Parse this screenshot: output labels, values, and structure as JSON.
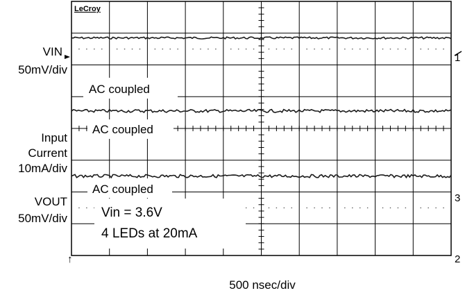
{
  "chart_data": {
    "type": "line",
    "brand": "LeCroy",
    "xlabel": "500 nsec/div",
    "grid": true,
    "divisions": {
      "horizontal": 10,
      "vertical": 8
    },
    "series": [
      {
        "name": "VIN",
        "channel_marker": "1",
        "scale": "50mV/div",
        "coupling": "AC coupled",
        "level_div": 6.85,
        "noise_div": 0.02
      },
      {
        "name": "Input Current",
        "scale": "10mA/div",
        "coupling": "AC coupled",
        "level_div": 4.55,
        "noise_div": 0.03
      },
      {
        "name": "VOUT",
        "channel_marker": "3",
        "scale": "50mV/div",
        "coupling": "AC coupled",
        "level_div": 2.5,
        "noise_div": 0.03
      }
    ],
    "channel_label_lines": {
      "vin": [
        "VIN",
        "50mV/div"
      ],
      "current": [
        "Input",
        "Current",
        "10mA/div"
      ],
      "vout": [
        "VOUT",
        "50mV/div"
      ]
    },
    "channel2_marker": "2",
    "annotation": [
      "Vin = 3.6V",
      "4 LEDs at 20mA"
    ],
    "trigger_marker": "↑",
    "colors": {
      "trace": "#1a1a1a",
      "grid": "#000000",
      "background": "#ffffff"
    }
  }
}
